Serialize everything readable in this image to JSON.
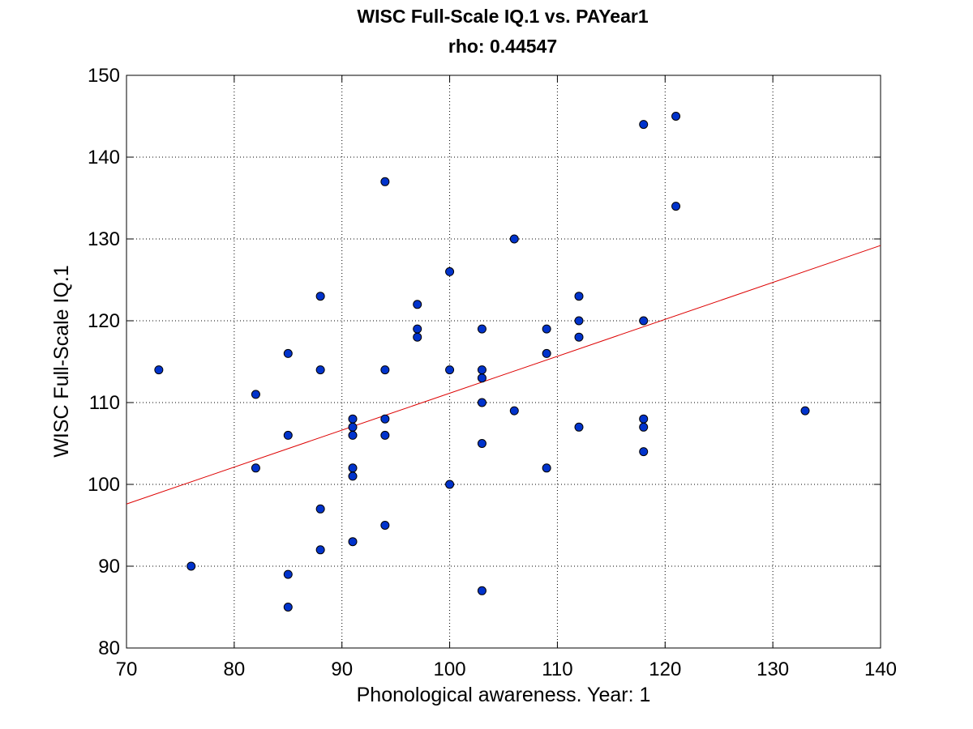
{
  "chart_data": {
    "type": "scatter",
    "title": "WISC Full-Scale IQ.1 vs. PAYear1",
    "subtitle": "rho: 0.44547",
    "xlabel": "Phonological awareness. Year: 1",
    "ylabel": "WISC Full-Scale IQ.1",
    "xlim": [
      70,
      140
    ],
    "ylim": [
      80,
      150
    ],
    "xticks": [
      70,
      80,
      90,
      100,
      110,
      120,
      130,
      140
    ],
    "yticks": [
      80,
      90,
      100,
      110,
      120,
      130,
      140,
      150
    ],
    "grid": true,
    "point_color": "#0033cc",
    "fit_line_color": "#dd0000",
    "fit_line": {
      "x": [
        70,
        140
      ],
      "y": [
        97.6,
        129.2
      ]
    },
    "points": [
      {
        "x": 73,
        "y": 114
      },
      {
        "x": 76,
        "y": 90
      },
      {
        "x": 82,
        "y": 111
      },
      {
        "x": 82,
        "y": 102
      },
      {
        "x": 85,
        "y": 116
      },
      {
        "x": 85,
        "y": 106
      },
      {
        "x": 85,
        "y": 89
      },
      {
        "x": 85,
        "y": 85
      },
      {
        "x": 88,
        "y": 123
      },
      {
        "x": 88,
        "y": 114
      },
      {
        "x": 88,
        "y": 97
      },
      {
        "x": 88,
        "y": 92
      },
      {
        "x": 91,
        "y": 108
      },
      {
        "x": 91,
        "y": 107
      },
      {
        "x": 91,
        "y": 106
      },
      {
        "x": 91,
        "y": 102
      },
      {
        "x": 91,
        "y": 101
      },
      {
        "x": 91,
        "y": 93
      },
      {
        "x": 94,
        "y": 137
      },
      {
        "x": 94,
        "y": 114
      },
      {
        "x": 94,
        "y": 108
      },
      {
        "x": 94,
        "y": 106
      },
      {
        "x": 94,
        "y": 95
      },
      {
        "x": 97,
        "y": 122
      },
      {
        "x": 97,
        "y": 119
      },
      {
        "x": 97,
        "y": 118
      },
      {
        "x": 100,
        "y": 126
      },
      {
        "x": 100,
        "y": 114
      },
      {
        "x": 100,
        "y": 100
      },
      {
        "x": 103,
        "y": 119
      },
      {
        "x": 103,
        "y": 114
      },
      {
        "x": 103,
        "y": 113
      },
      {
        "x": 103,
        "y": 110
      },
      {
        "x": 103,
        "y": 105
      },
      {
        "x": 103,
        "y": 87
      },
      {
        "x": 106,
        "y": 130
      },
      {
        "x": 106,
        "y": 109
      },
      {
        "x": 109,
        "y": 119
      },
      {
        "x": 109,
        "y": 116
      },
      {
        "x": 109,
        "y": 102
      },
      {
        "x": 112,
        "y": 123
      },
      {
        "x": 112,
        "y": 120
      },
      {
        "x": 112,
        "y": 118
      },
      {
        "x": 112,
        "y": 107
      },
      {
        "x": 118,
        "y": 144
      },
      {
        "x": 118,
        "y": 120
      },
      {
        "x": 118,
        "y": 108
      },
      {
        "x": 118,
        "y": 107
      },
      {
        "x": 118,
        "y": 104
      },
      {
        "x": 121,
        "y": 145
      },
      {
        "x": 121,
        "y": 134
      },
      {
        "x": 133,
        "y": 109
      }
    ]
  }
}
